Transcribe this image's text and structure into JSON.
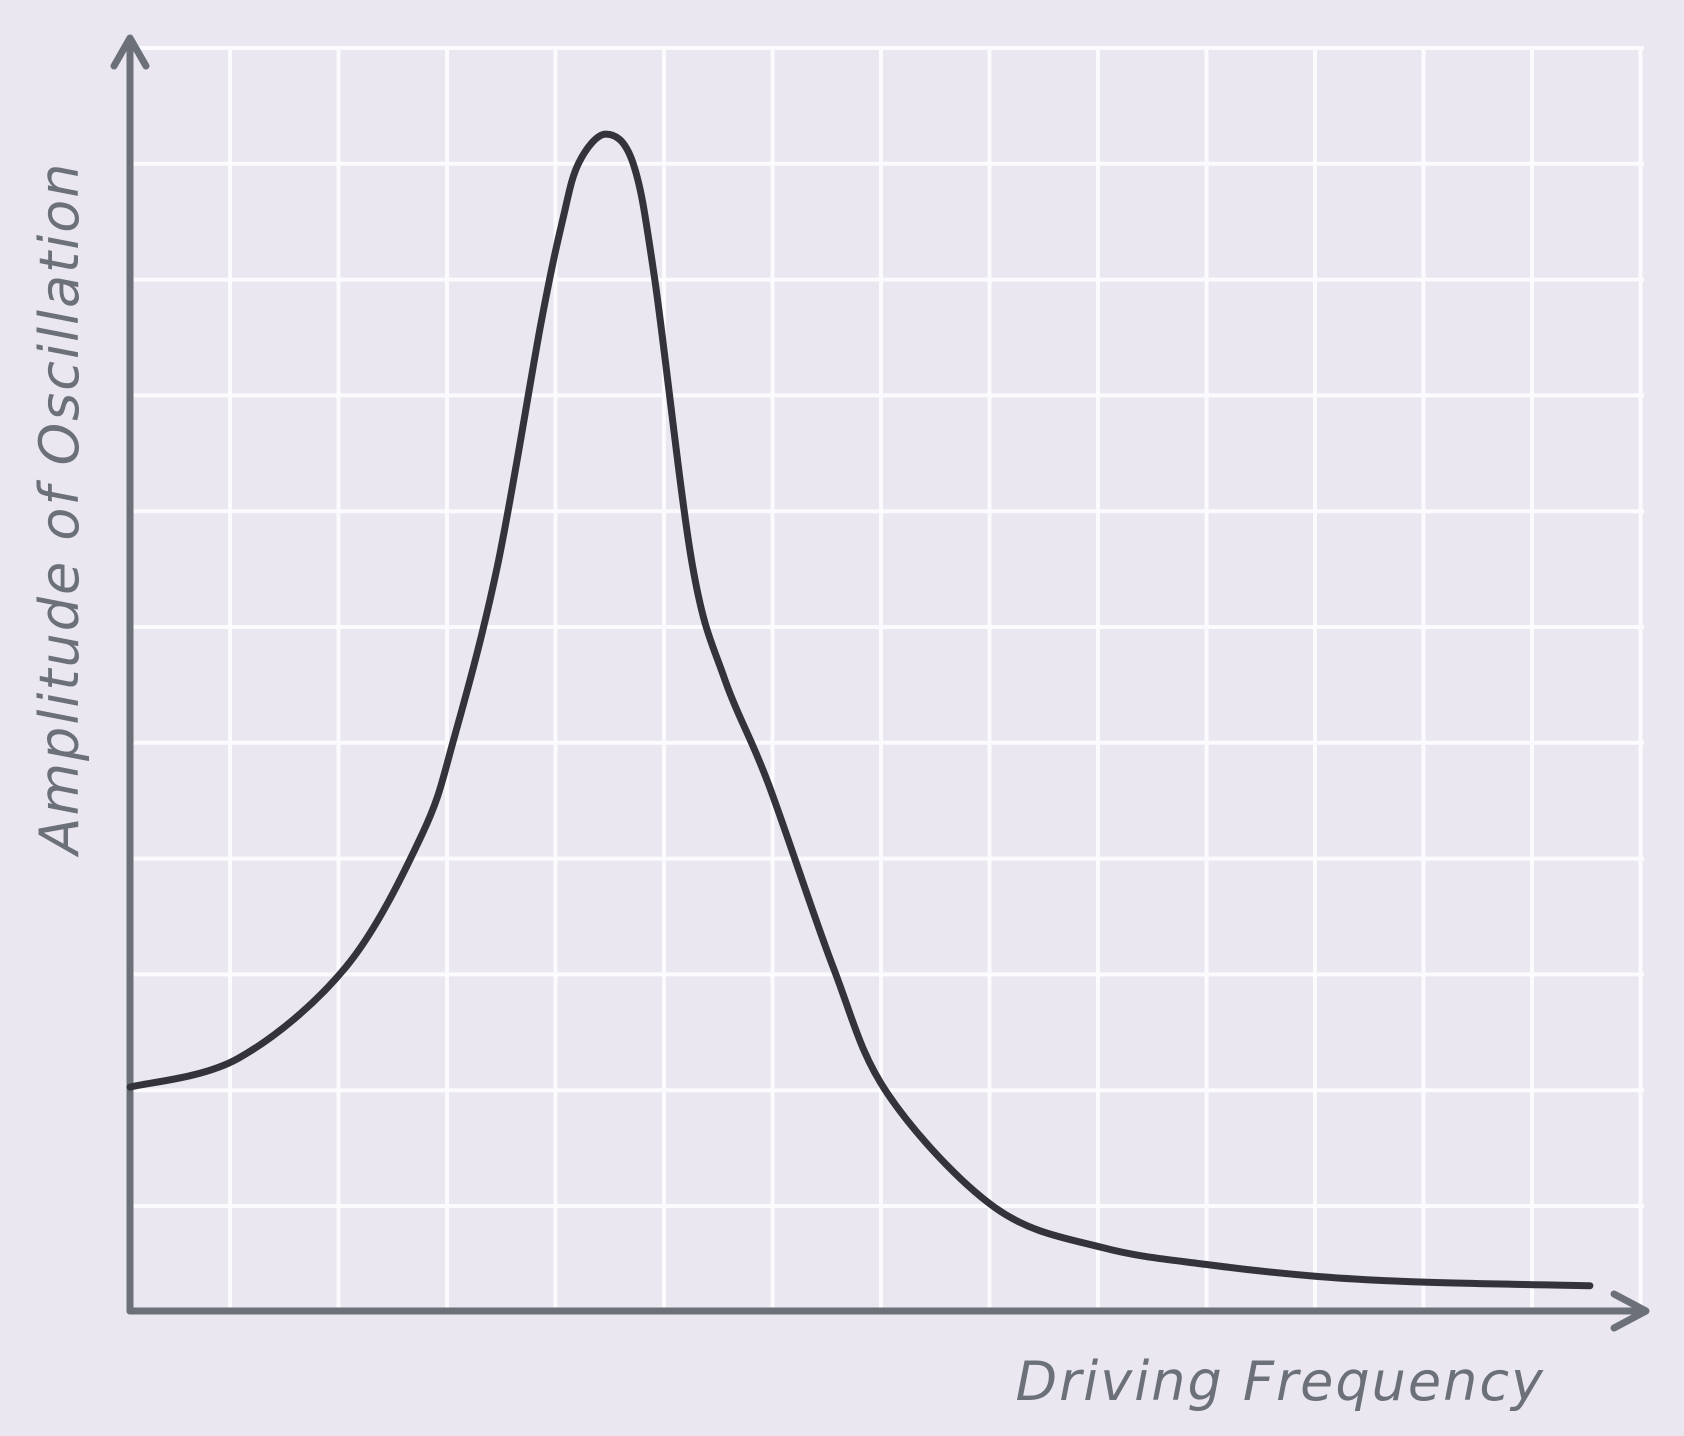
{
  "chart_data": {
    "type": "line",
    "title": "",
    "xlabel": "Driving Frequency",
    "ylabel": "Amplitude of Oscillation",
    "xlim": [
      0,
      14
    ],
    "ylim": [
      0,
      11
    ],
    "grid": true,
    "x_ticks_labeled": false,
    "y_ticks_labeled": false,
    "series": [
      {
        "values": [
          {
            "x": 0.0,
            "y": 1.95
          },
          {
            "x": 1.0,
            "y": 2.2
          },
          {
            "x": 2.0,
            "y": 3.0
          },
          {
            "x": 2.7,
            "y": 4.15
          },
          {
            "x": 3.0,
            "y": 5.0
          },
          {
            "x": 3.4,
            "y": 6.5
          },
          {
            "x": 3.8,
            "y": 8.6
          },
          {
            "x": 4.0,
            "y": 9.5
          },
          {
            "x": 4.15,
            "y": 10.0
          },
          {
            "x": 4.4,
            "y": 10.25
          },
          {
            "x": 4.65,
            "y": 10.0
          },
          {
            "x": 4.85,
            "y": 9.0
          },
          {
            "x": 5.2,
            "y": 6.5
          },
          {
            "x": 5.5,
            "y": 5.5
          },
          {
            "x": 5.9,
            "y": 4.6
          },
          {
            "x": 6.5,
            "y": 3.0
          },
          {
            "x": 7.0,
            "y": 1.9
          },
          {
            "x": 8.0,
            "y": 0.9
          },
          {
            "x": 9.0,
            "y": 0.55
          },
          {
            "x": 10.0,
            "y": 0.4
          },
          {
            "x": 11.0,
            "y": 0.3
          },
          {
            "x": 12.0,
            "y": 0.25
          },
          {
            "x": 13.5,
            "y": 0.22
          }
        ]
      }
    ]
  },
  "colors": {
    "background": "#ebe7f1",
    "grid": "#fbfafd",
    "axis": "#6c7078",
    "curve": "#34333b"
  }
}
